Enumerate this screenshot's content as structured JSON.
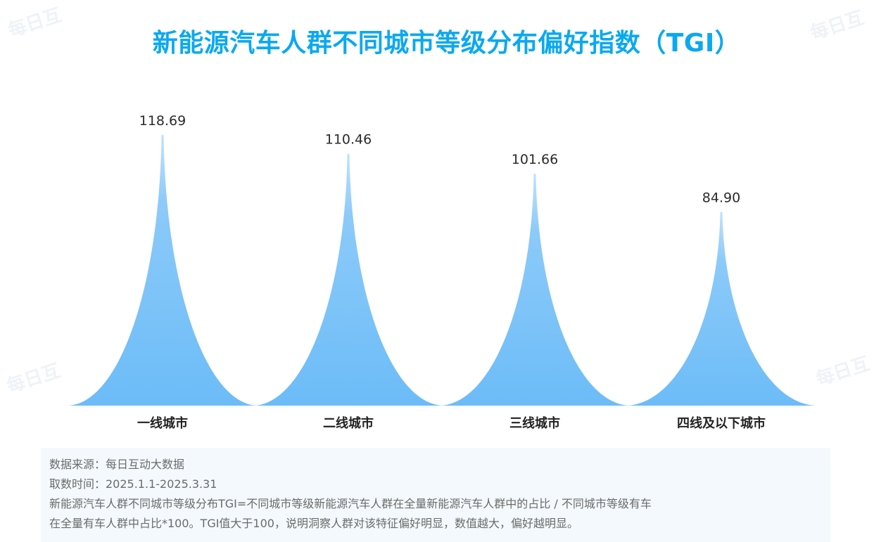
{
  "header": {
    "title": "新能源汽车人群不同城市等级分布偏好指数（TGI）"
  },
  "colors": {
    "title": "#0aa9f0",
    "peak_fill": "#6cbcf8",
    "peak_fill_light": "#bfe2fd"
  },
  "watermark": {
    "text": "每日互"
  },
  "chart_data": {
    "type": "bar",
    "categories": [
      "一线城市",
      "二线城市",
      "三线城市",
      "四线及以下城市"
    ],
    "values": [
      118.69,
      110.46,
      101.66,
      84.9
    ],
    "value_labels": [
      "118.69",
      "110.46",
      "101.66",
      "84.90"
    ],
    "title": "新能源汽车人群不同城市等级分布偏好指数（TGI）",
    "xlabel": "",
    "ylabel": "",
    "ylim": [
      0,
      118.69
    ],
    "grid": false,
    "legend": "none"
  },
  "footer": {
    "lines": [
      "数据来源：每日互动大数据",
      "取数时间：2025.1.1-2025.3.31",
      "新能源汽车人群不同城市等级分布TGI=不同城市等级新能源汽车人群在全量新能源汽车人群中的占比  / 不同城市等级有车",
      "在全量有车人群中占比*100。TGI值大于100，说明洞察人群对该特征偏好明显，数值越大，偏好越明显。"
    ]
  }
}
